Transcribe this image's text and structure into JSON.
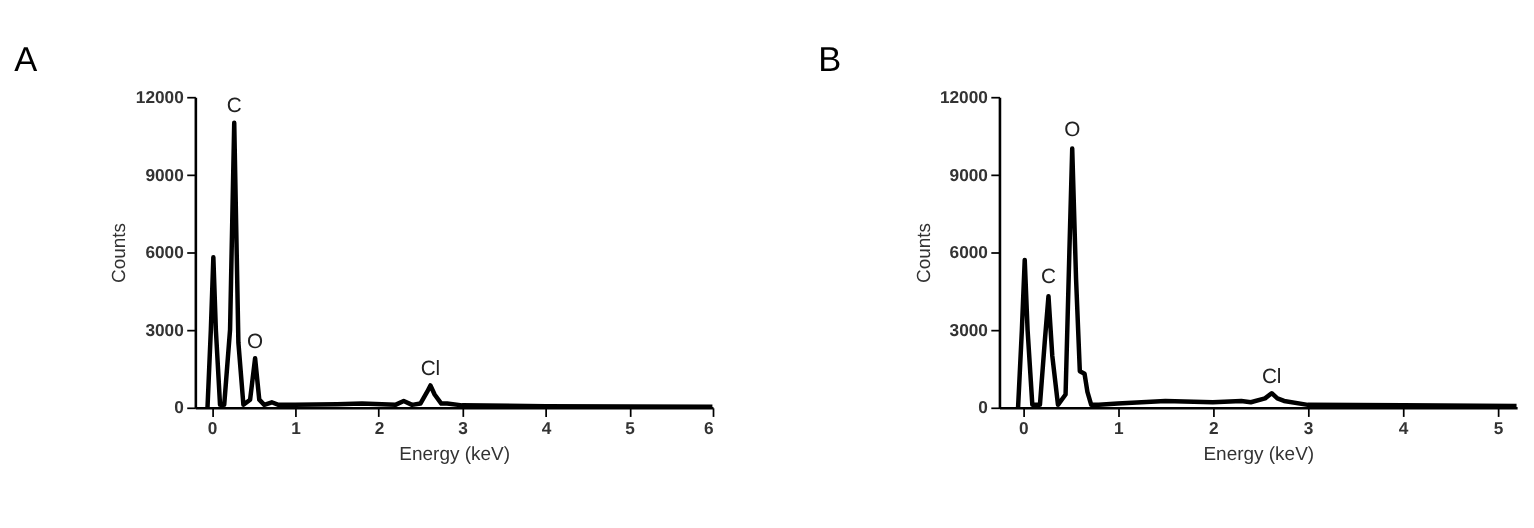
{
  "chart_data": [
    {
      "type": "line",
      "title": "A",
      "xlabel": "Energy (keV)",
      "ylabel": "Counts",
      "xlim": [
        -0.2,
        6
      ],
      "xticks": [
        0,
        1,
        2,
        3,
        4,
        5,
        6
      ],
      "ylim": [
        0,
        12000
      ],
      "yticks": [
        0,
        3000,
        6000,
        9000,
        12000
      ],
      "grid": false,
      "marker": "none",
      "line_style": "solid",
      "series": [
        {
          "color": "#000000",
          "x": [
            -0.05,
            -0.01,
            0.02,
            0.05,
            0.1,
            0.15,
            0.22,
            0.27,
            0.32,
            0.38,
            0.46,
            0.52,
            0.57,
            0.63,
            0.72,
            0.8,
            1.0,
            1.5,
            1.8,
            2.2,
            2.3,
            2.4,
            2.5,
            2.58,
            2.62,
            2.67,
            2.75,
            2.82,
            3.0,
            4.0,
            5.0,
            6.0
          ],
          "values": [
            0,
            3000,
            5800,
            3000,
            100,
            100,
            3000,
            11000,
            2500,
            100,
            300,
            1900,
            300,
            100,
            200,
            100,
            100,
            120,
            150,
            100,
            250,
            100,
            150,
            600,
            850,
            500,
            150,
            150,
            80,
            50,
            40,
            30
          ]
        }
      ],
      "annotations": [
        {
          "text": "C",
          "x": 0.27,
          "y": 11200
        },
        {
          "text": "O",
          "x": 0.52,
          "y": 2100
        },
        {
          "text": "Cl",
          "x": 2.62,
          "y": 1050
        }
      ]
    },
    {
      "type": "line",
      "title": "B",
      "xlabel": "Energy (keV)",
      "ylabel": "Counts",
      "xlim": [
        -0.25,
        5.2
      ],
      "xticks": [
        0,
        1,
        2,
        3,
        4,
        5
      ],
      "ylim": [
        0,
        12000
      ],
      "yticks": [
        0,
        3000,
        6000,
        9000,
        12000
      ],
      "grid": false,
      "marker": "none",
      "line_style": "solid",
      "series": [
        {
          "color": "#000000",
          "x": [
            -0.05,
            -0.01,
            0.02,
            0.05,
            0.1,
            0.18,
            0.23,
            0.27,
            0.31,
            0.37,
            0.45,
            0.49,
            0.52,
            0.56,
            0.6,
            0.65,
            0.68,
            0.72,
            0.8,
            1.0,
            1.5,
            2.0,
            2.3,
            2.4,
            2.55,
            2.62,
            2.68,
            2.75,
            3.0,
            4.0,
            5.2
          ],
          "values": [
            0,
            3000,
            5700,
            3000,
            100,
            100,
            2500,
            4300,
            2000,
            100,
            500,
            6000,
            10000,
            5000,
            1400,
            1300,
            600,
            100,
            100,
            150,
            250,
            200,
            250,
            200,
            350,
            550,
            350,
            250,
            100,
            80,
            60
          ]
        }
      ],
      "annotations": [
        {
          "text": "O",
          "x": 0.52,
          "y": 10300
        },
        {
          "text": "C",
          "x": 0.27,
          "y": 4600
        },
        {
          "text": "Cl",
          "x": 2.62,
          "y": 750
        }
      ]
    }
  ]
}
